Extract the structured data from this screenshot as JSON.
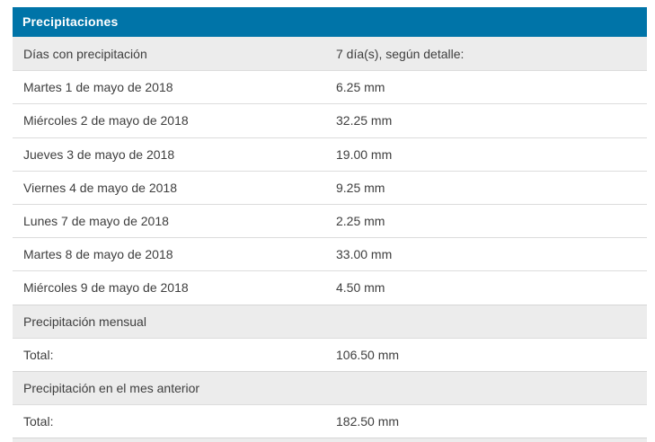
{
  "panel": {
    "title": "Precipitaciones",
    "colors": {
      "header_bg": "#0074a8",
      "header_text": "#ffffff",
      "gray_row_bg": "#ececec",
      "border_color": "#dcdcdc",
      "gray_border_color": "#d6d6d6",
      "text_color": "#3e3e3e"
    },
    "rows": [
      {
        "label": "Días con precipitación",
        "value": "7 día(s), según detalle:",
        "bg": "gray",
        "partial": false
      },
      {
        "label": "Martes 1 de mayo de 2018",
        "value": "6.25 mm",
        "bg": "white",
        "partial": false
      },
      {
        "label": "Miércoles 2 de mayo de 2018",
        "value": "32.25 mm",
        "bg": "white",
        "partial": false
      },
      {
        "label": "Jueves 3 de mayo de 2018",
        "value": "19.00 mm",
        "bg": "white",
        "partial": false
      },
      {
        "label": "Viernes 4 de mayo de 2018",
        "value": "9.25 mm",
        "bg": "white",
        "partial": false
      },
      {
        "label": "Lunes 7 de mayo de 2018",
        "value": "2.25 mm",
        "bg": "white",
        "partial": false
      },
      {
        "label": "Martes 8 de mayo de 2018",
        "value": "33.00 mm",
        "bg": "white",
        "partial": false
      },
      {
        "label": "Miércoles 9 de mayo de 2018",
        "value": "4.50 mm",
        "bg": "white",
        "partial": false
      },
      {
        "label": "Precipitación mensual",
        "value": "",
        "bg": "gray",
        "partial": false
      },
      {
        "label": "Total:",
        "value": "106.50 mm",
        "bg": "white",
        "partial": false
      },
      {
        "label": "Precipitación en el mes anterior",
        "value": "",
        "bg": "gray",
        "partial": false
      },
      {
        "label": "Total:",
        "value": "182.50 mm",
        "bg": "white",
        "partial": false
      },
      {
        "label": "",
        "value": "",
        "bg": "gray",
        "partial": true
      }
    ]
  }
}
